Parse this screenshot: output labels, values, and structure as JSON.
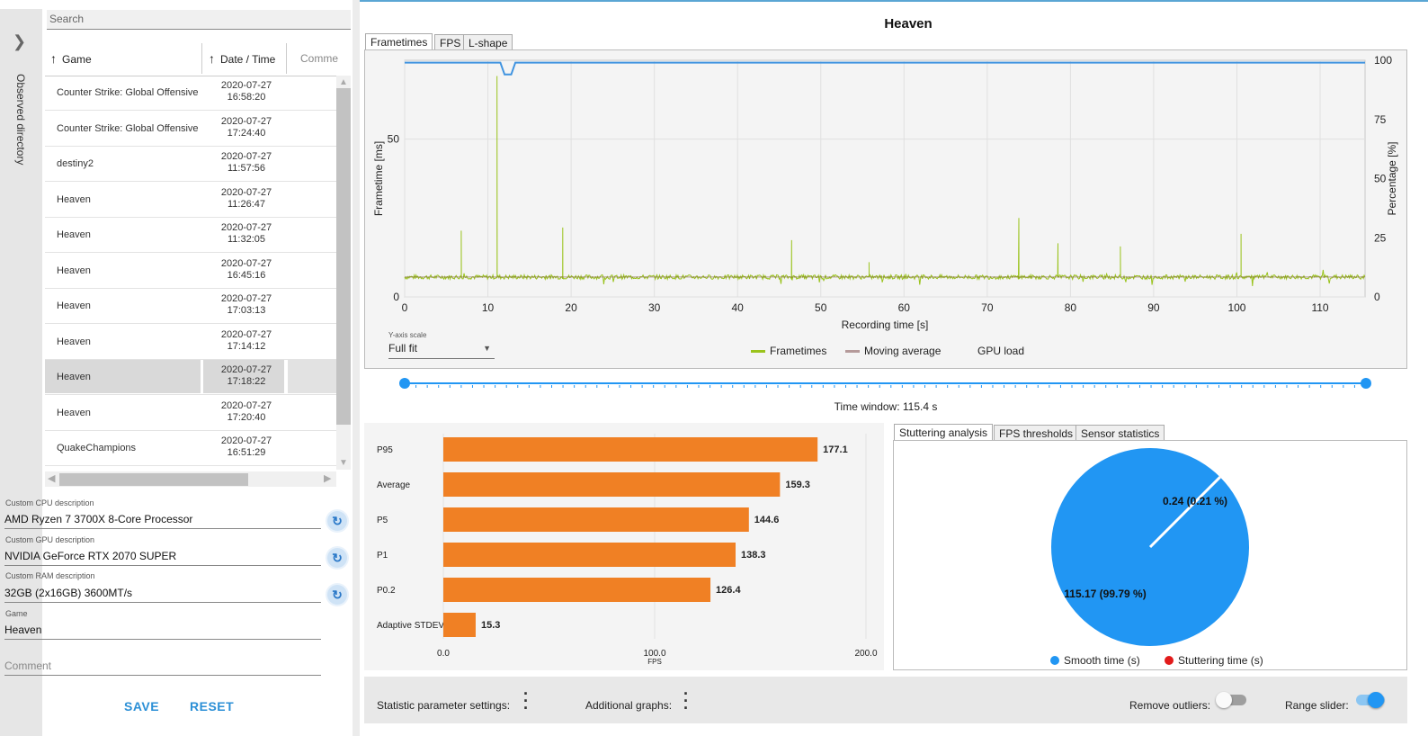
{
  "sidebar": {
    "label": "Observed directory"
  },
  "search": {
    "placeholder": "Search"
  },
  "table": {
    "columns": [
      "Game",
      "Date / Time",
      "Comme"
    ],
    "rows": [
      {
        "game": "Counter Strike: Global Offensive",
        "date": "2020-07-27",
        "time": "16:58:20"
      },
      {
        "game": "Counter Strike: Global Offensive",
        "date": "2020-07-27",
        "time": "17:24:40"
      },
      {
        "game": "destiny2",
        "date": "2020-07-27",
        "time": "11:57:56"
      },
      {
        "game": "Heaven",
        "date": "2020-07-27",
        "time": "11:26:47"
      },
      {
        "game": "Heaven",
        "date": "2020-07-27",
        "time": "11:32:05"
      },
      {
        "game": "Heaven",
        "date": "2020-07-27",
        "time": "16:45:16"
      },
      {
        "game": "Heaven",
        "date": "2020-07-27",
        "time": "17:03:13"
      },
      {
        "game": "Heaven",
        "date": "2020-07-27",
        "time": "17:14:12"
      },
      {
        "game": "Heaven",
        "date": "2020-07-27",
        "time": "17:18:22"
      },
      {
        "game": "Heaven",
        "date": "2020-07-27",
        "time": "17:20:40"
      },
      {
        "game": "QuakeChampions",
        "date": "2020-07-27",
        "time": "16:51:29"
      }
    ]
  },
  "details": {
    "cpu_label": "Custom CPU description",
    "cpu_value": "AMD Ryzen 7 3700X 8-Core Processor",
    "gpu_label": "Custom GPU description",
    "gpu_value": "NVIDIA GeForce RTX 2070 SUPER",
    "ram_label": "Custom RAM description",
    "ram_value": "32GB (2x16GB) 3600MT/s",
    "game_label": "Game",
    "game_value": "Heaven",
    "comment_placeholder": "Comment"
  },
  "buttons": {
    "save": "SAVE",
    "reset": "RESET"
  },
  "title": "Heaven",
  "chart_tabs": [
    "Frametimes",
    "FPS",
    "L-shape"
  ],
  "yaxis_scale": {
    "label": "Y-axis scale",
    "value": "Full fit"
  },
  "legend": {
    "frametimes": "Frametimes",
    "moving_average": "Moving average",
    "gpu_load": "GPU load"
  },
  "time_window": "Time window: 115.4 s",
  "stats_tabs": [
    "Stuttering analysis",
    "FPS thresholds",
    "Sensor statistics"
  ],
  "bottom": {
    "statistic_settings": "Statistic parameter settings:",
    "additional_graphs": "Additional graphs:",
    "remove_outliers": "Remove outliers:",
    "range_slider": "Range slider:",
    "remove_outliers_on": false,
    "range_slider_on": true
  },
  "colors": {
    "accent": "#2b8fd6",
    "frametimes": "#9ac31c",
    "moving_average": "#b59a9a",
    "gpu_load": "#3f93e0",
    "bar": "#f08024",
    "smooth": "#2196f3",
    "stutter": "#e21b1b"
  },
  "chart_data": [
    {
      "type": "line",
      "title": "Heaven",
      "xlabel": "Recording time [s]",
      "ylabel": "Frametime [ms]",
      "y2label": "Percentage [%]",
      "xlim": [
        0,
        115.4
      ],
      "ylim": [
        0,
        75
      ],
      "y2lim": [
        0,
        100
      ],
      "x_ticks": [
        0,
        10,
        20,
        30,
        40,
        50,
        60,
        70,
        80,
        90,
        100,
        110
      ],
      "y_ticks": [
        0,
        50
      ],
      "y2_ticks": [
        0,
        25,
        50,
        75,
        100
      ],
      "grid": true,
      "series": [
        {
          "name": "Frametimes",
          "baseline": 6.3,
          "spikes": [
            [
              6.8,
              21
            ],
            [
              11.1,
              70
            ],
            [
              19.0,
              22
            ],
            [
              46.5,
              18
            ],
            [
              55.8,
              11
            ],
            [
              73.8,
              25
            ],
            [
              78.5,
              17
            ],
            [
              86.0,
              16
            ],
            [
              100.5,
              20
            ]
          ]
        },
        {
          "name": "Moving average",
          "value": 6.3
        },
        {
          "name": "GPU load",
          "x": [
            0,
            11.5,
            12.0,
            12.8,
            13.3,
            115.4
          ],
          "y": [
            99,
            99,
            94,
            94,
            99,
            99
          ]
        }
      ]
    },
    {
      "type": "bar",
      "orientation": "horizontal",
      "categories": [
        "P95",
        "Average",
        "P5",
        "P1",
        "P0.2",
        "Adaptive STDEV"
      ],
      "values": [
        177.1,
        159.3,
        144.6,
        138.3,
        126.4,
        15.3
      ],
      "xlabel": "FPS",
      "xlim": [
        0,
        200
      ],
      "x_ticks": [
        "0.0",
        "100.0",
        "200.0"
      ]
    },
    {
      "type": "pie",
      "slices": [
        {
          "name": "Smooth time (s)",
          "value": 115.17,
          "label": "115.17 (99.79 %)"
        },
        {
          "name": "Stuttering time (s)",
          "value": 0.24,
          "label": "0.24 (0.21 %)"
        }
      ]
    }
  ]
}
